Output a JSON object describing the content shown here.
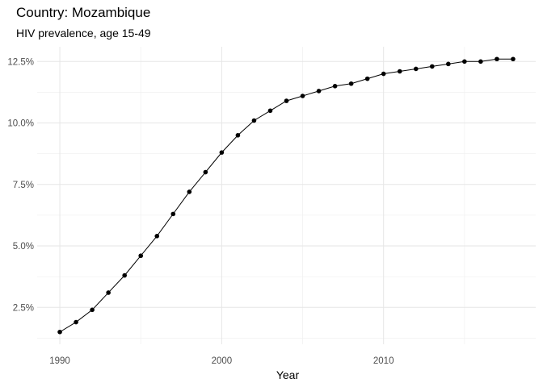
{
  "chart_data": {
    "type": "line",
    "title": "Country: Mozambique",
    "subtitle": "HIV prevalence, age 15-49",
    "xlabel": "Year",
    "ylabel": "",
    "xlim": [
      1988.6,
      2019.4
    ],
    "ylim": [
      1.0,
      13.1
    ],
    "x_ticks": [
      1990,
      2000,
      2010
    ],
    "x_tick_labels": [
      "1990",
      "2000",
      "2010"
    ],
    "x_minor_ticks": [
      1995,
      2005,
      2015
    ],
    "y_ticks": [
      2.5,
      5.0,
      7.5,
      10.0,
      12.5
    ],
    "y_tick_labels": [
      "2.5%",
      "5.0%",
      "7.5%",
      "10.0%",
      "12.5%"
    ],
    "y_minor_ticks": [
      1.25,
      3.75,
      6.25,
      8.75,
      11.25
    ],
    "grid": true,
    "legend": "none",
    "series": [
      {
        "color": "#000000",
        "x": [
          1990,
          1991,
          1992,
          1993,
          1994,
          1995,
          1996,
          1997,
          1998,
          1999,
          2000,
          2001,
          2002,
          2003,
          2004,
          2005,
          2006,
          2007,
          2008,
          2009,
          2010,
          2011,
          2012,
          2013,
          2014,
          2015,
          2016,
          2017,
          2018
        ],
        "values": [
          1.5,
          1.9,
          2.4,
          3.1,
          3.8,
          4.6,
          5.4,
          6.3,
          7.2,
          8.0,
          8.8,
          9.5,
          10.1,
          10.5,
          10.9,
          11.1,
          11.3,
          11.5,
          11.6,
          11.8,
          12.0,
          12.1,
          12.2,
          12.3,
          12.4,
          12.5,
          12.5,
          12.6,
          12.6
        ]
      }
    ]
  }
}
